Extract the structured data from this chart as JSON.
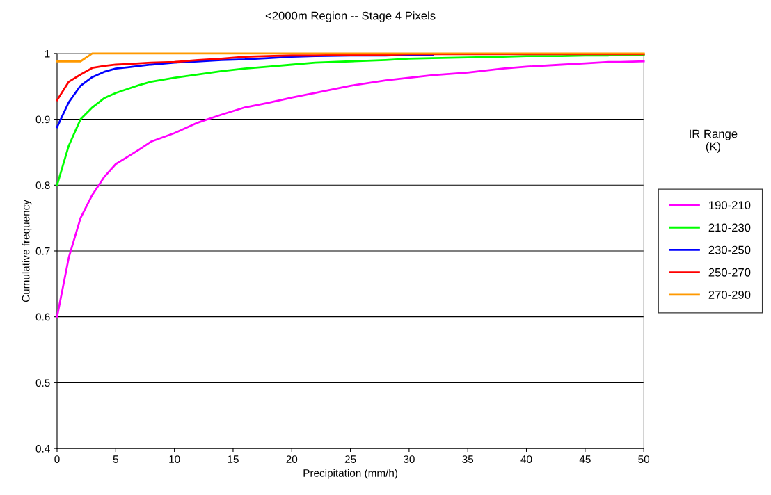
{
  "chart_data": {
    "type": "line",
    "title": "<2000m Region -- Stage 4 Pixels",
    "xlabel": "Precipitation (mm/h)",
    "ylabel": "Cumulative frequency",
    "legend_title": "IR Range\n(K)",
    "x": [
      0,
      1,
      2,
      3,
      4,
      5,
      6,
      7,
      8,
      10,
      12,
      14,
      16,
      18,
      20,
      22,
      25,
      28,
      30,
      32,
      35,
      38,
      40,
      43,
      45,
      47,
      48,
      50
    ],
    "series": [
      {
        "name": "190-210",
        "color": "#ff00ff",
        "values": [
          0.6,
          0.69,
          0.75,
          0.785,
          0.812,
          0.832,
          0.843,
          0.854,
          0.866,
          0.879,
          0.895,
          0.907,
          0.918,
          0.925,
          0.933,
          0.94,
          0.951,
          0.959,
          0.963,
          0.967,
          0.971,
          0.977,
          0.98,
          0.983,
          0.985,
          0.987,
          0.987,
          0.988
        ]
      },
      {
        "name": "210-230",
        "color": "#00ff00",
        "values": [
          0.8,
          0.86,
          0.9,
          0.918,
          0.932,
          0.94,
          0.946,
          0.952,
          0.957,
          0.963,
          0.968,
          0.973,
          0.977,
          0.98,
          0.983,
          0.986,
          0.988,
          0.99,
          0.992,
          0.993,
          0.994,
          0.995,
          0.996,
          0.996,
          0.997,
          0.997,
          0.998,
          0.998
        ]
      },
      {
        "name": "230-250",
        "color": "#0000ff",
        "values": [
          0.888,
          0.926,
          0.951,
          0.964,
          0.972,
          0.977,
          0.979,
          0.981,
          0.983,
          0.986,
          0.988,
          0.99,
          0.991,
          0.993,
          0.995,
          0.996,
          0.997,
          0.997,
          0.998,
          0.998,
          null,
          null,
          null,
          null,
          null,
          null,
          null,
          null
        ]
      },
      {
        "name": "250-270",
        "color": "#ff0000",
        "values": [
          0.929,
          0.957,
          0.968,
          0.978,
          0.981,
          0.983,
          0.984,
          0.985,
          0.986,
          0.987,
          0.99,
          0.992,
          0.995,
          0.996,
          0.997,
          0.997,
          0.998,
          0.998,
          0.999,
          0.999,
          0.999,
          0.999,
          0.999,
          0.999,
          0.999,
          0.999,
          0.999,
          0.999
        ]
      },
      {
        "name": "270-290",
        "color": "#ff9900",
        "values": [
          0.988,
          0.988,
          0.988,
          1.0,
          1.0,
          1.0,
          1.0,
          1.0,
          1.0,
          1.0,
          1.0,
          1.0,
          1.0,
          1.0,
          1.0,
          1.0,
          1.0,
          1.0,
          1.0,
          1.0,
          1.0,
          1.0,
          1.0,
          1.0,
          1.0,
          1.0,
          1.0,
          1.0
        ]
      }
    ],
    "xlim": [
      0,
      50
    ],
    "xticks": [
      0,
      5,
      10,
      15,
      20,
      25,
      30,
      35,
      40,
      45,
      50
    ],
    "ylim": [
      0.4,
      1
    ],
    "yticks": [
      0.4,
      0.5,
      0.6,
      0.7,
      0.8,
      0.9,
      1
    ],
    "grid": "y",
    "legend": "right",
    "marker": "none",
    "line_style": "solid"
  }
}
